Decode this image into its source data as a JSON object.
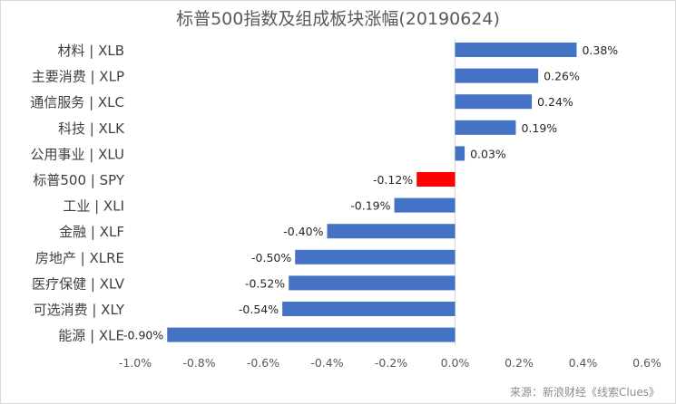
{
  "chart_data": {
    "type": "bar",
    "orientation": "horizontal",
    "title": "标普500指数及组成板块涨幅(20190624)",
    "categories": [
      "材料 | XLB",
      "主要消费 | XLP",
      "通信服务 | XLC",
      "科技 | XLK",
      "公用事业 | XLU",
      "标普500 | SPY",
      "工业 | XLI",
      "金融 | XLF",
      "房地产 | XLRE",
      "医疗保健 | XLV",
      "可选消费 | XLY",
      "能源 | XLE"
    ],
    "values": [
      0.38,
      0.26,
      0.24,
      0.19,
      0.03,
      -0.12,
      -0.19,
      -0.4,
      -0.5,
      -0.52,
      -0.54,
      -0.9
    ],
    "data_labels": [
      "0.38%",
      "0.26%",
      "0.24%",
      "0.19%",
      "0.03%",
      "-0.12%",
      "-0.19%",
      "-0.40%",
      "-0.50%",
      "-0.52%",
      "-0.54%",
      "-0.90%"
    ],
    "xlim": [
      -1.0,
      0.6
    ],
    "xticks": [
      -1.0,
      -0.8,
      -0.6,
      -0.4,
      -0.2,
      0.0,
      0.2,
      0.4,
      0.6
    ],
    "xtick_labels": [
      "-1.0%",
      "-0.8%",
      "-0.6%",
      "-0.4%",
      "-0.2%",
      "0.0%",
      "0.2%",
      "0.4%",
      "0.6%"
    ],
    "grid": false,
    "legend": false,
    "colors": {
      "default": "#4472c4",
      "highlight": "#ff0000",
      "highlight_category": "标普500 | SPY"
    }
  },
  "source": "来源：新浪财经《线索Clues》"
}
